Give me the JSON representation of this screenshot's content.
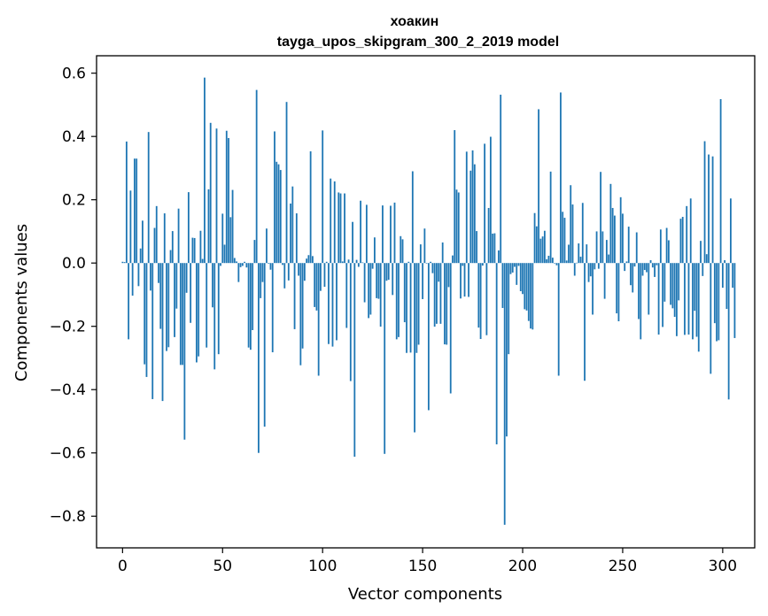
{
  "chart_data": {
    "type": "bar",
    "title": "хоакин",
    "subtitle": "tayga_upos_skipgram_300_2_2019 model",
    "xlabel": "Vector components",
    "ylabel": "Components values",
    "xlim": [
      -13,
      316
    ],
    "ylim": [
      -0.9,
      0.655
    ],
    "x_ticks": [
      0,
      50,
      100,
      150,
      200,
      250,
      300
    ],
    "x_tick_labels": [
      "0",
      "50",
      "100",
      "150",
      "200",
      "250",
      "300"
    ],
    "y_ticks": [
      -0.8,
      -0.6,
      -0.4,
      -0.2,
      0.0,
      0.2,
      0.4,
      0.6
    ],
    "y_tick_labels": [
      "−0.8",
      "−0.6",
      "−0.4",
      "−0.2",
      "0.0",
      "0.2",
      "0.4",
      "0.6"
    ],
    "grid": false,
    "bar_color": "#1f77b4",
    "values": [
      0.004,
      0.003,
      0.384,
      -0.241,
      0.229,
      -0.103,
      0.33,
      0.33,
      -0.073,
      0.046,
      0.134,
      -0.32,
      -0.36,
      0.414,
      -0.087,
      -0.43,
      0.111,
      0.18,
      -0.063,
      -0.208,
      -0.436,
      0.157,
      -0.278,
      -0.266,
      0.041,
      0.101,
      -0.234,
      -0.144,
      0.172,
      -0.322,
      -0.322,
      -0.558,
      -0.094,
      0.224,
      -0.189,
      0.08,
      0.079,
      -0.314,
      -0.295,
      0.102,
      0.013,
      0.586,
      -0.267,
      0.233,
      0.443,
      -0.14,
      -0.336,
      0.425,
      -0.288,
      -0.009,
      0.156,
      0.058,
      0.418,
      0.395,
      0.145,
      0.231,
      0.016,
      0.005,
      -0.06,
      -0.013,
      -0.009,
      0.004,
      -0.014,
      -0.267,
      -0.274,
      -0.212,
      0.073,
      0.547,
      -0.6,
      -0.111,
      -0.06,
      -0.517,
      0.109,
      -0.002,
      -0.021,
      -0.282,
      0.416,
      0.32,
      0.312,
      0.294,
      -0.006,
      -0.08,
      0.509,
      -0.055,
      0.188,
      0.242,
      -0.209,
      0.157,
      -0.04,
      -0.323,
      -0.27,
      -0.056,
      0.014,
      0.025,
      0.353,
      0.022,
      -0.139,
      -0.15,
      -0.356,
      -0.088,
      0.419,
      -0.075,
      0.004,
      -0.256,
      0.267,
      -0.264,
      0.258,
      -0.244,
      0.223,
      0.22,
      0.005,
      0.22,
      -0.205,
      0.011,
      -0.373,
      0.13,
      -0.612,
      0.01,
      -0.012,
      0.197,
      0.002,
      -0.124,
      0.184,
      -0.174,
      -0.163,
      -0.018,
      0.081,
      -0.111,
      -0.113,
      -0.201,
      0.182,
      -0.603,
      -0.056,
      -0.053,
      0.181,
      -0.101,
      0.191,
      -0.241,
      -0.234,
      0.085,
      0.075,
      -0.187,
      -0.284,
      0.004,
      -0.283,
      0.29,
      -0.535,
      -0.284,
      -0.258,
      0.059,
      -0.114,
      0.109,
      -0.001,
      -0.465,
      0.004,
      -0.032,
      -0.201,
      -0.192,
      -0.059,
      -0.192,
      0.065,
      -0.257,
      -0.258,
      -0.076,
      -0.412,
      0.024,
      0.42,
      0.232,
      0.223,
      -0.112,
      -0.009,
      -0.106,
      0.352,
      -0.107,
      0.292,
      0.356,
      0.312,
      0.101,
      -0.204,
      -0.24,
      -0.008,
      0.377,
      -0.228,
      0.174,
      0.399,
      0.093,
      0.094,
      -0.573,
      0.04,
      0.532,
      -0.142,
      -0.827,
      -0.548,
      -0.288,
      -0.035,
      -0.03,
      -0.012,
      -0.069,
      -0.009,
      -0.089,
      -0.098,
      -0.146,
      -0.15,
      -0.183,
      -0.207,
      -0.21,
      0.158,
      0.116,
      0.486,
      0.077,
      0.084,
      0.102,
      0.012,
      0.023,
      0.289,
      0.017,
      0.0,
      -0.007,
      -0.356,
      0.539,
      0.162,
      0.143,
      0.008,
      0.058,
      0.246,
      0.185,
      -0.04,
      0.001,
      0.062,
      0.02,
      0.19,
      -0.372,
      0.059,
      -0.06,
      -0.042,
      -0.163,
      -0.02,
      0.1,
      -0.018,
      0.288,
      0.1,
      -0.113,
      0.073,
      0.027,
      0.25,
      0.174,
      0.15,
      -0.159,
      -0.184,
      0.208,
      0.156,
      -0.025,
      0.005,
      0.115,
      -0.07,
      -0.093,
      -0.011,
      0.097,
      -0.177,
      -0.241,
      -0.04,
      -0.022,
      -0.029,
      -0.163,
      0.009,
      -0.014,
      -0.044,
      -0.007,
      -0.226,
      0.106,
      -0.202,
      -0.122,
      0.111,
      0.072,
      -0.132,
      -0.143,
      -0.17,
      -0.231,
      -0.118,
      0.14,
      0.146,
      -0.227,
      0.18,
      -0.226,
      0.204,
      -0.241,
      -0.151,
      -0.233,
      -0.28,
      0.07,
      -0.041,
      0.385,
      0.028,
      0.343,
      -0.35,
      0.337,
      -0.19,
      -0.247,
      -0.244,
      0.518,
      -0.078,
      0.009,
      -0.145,
      -0.431,
      0.204,
      -0.078,
      -0.237
    ]
  }
}
